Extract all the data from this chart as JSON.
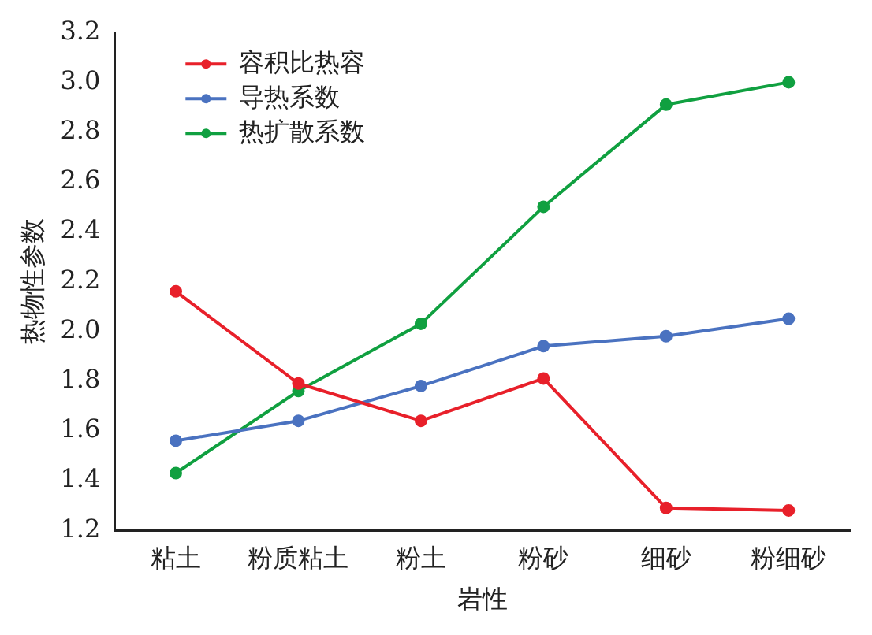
{
  "chart_data": {
    "type": "line",
    "xlabel": "岩性",
    "ylabel": "热物性参数",
    "categories": [
      "粘土",
      "粉质粘土",
      "粉土",
      "粉砂",
      "细砂",
      "粉细砂"
    ],
    "series": [
      {
        "name": "容积比热容",
        "color": "#e8202a",
        "values": [
          2.16,
          1.79,
          1.64,
          1.81,
          1.29,
          1.28
        ]
      },
      {
        "name": "导热系数",
        "color": "#4a72c0",
        "values": [
          1.56,
          1.64,
          1.78,
          1.94,
          1.98,
          2.05
        ]
      },
      {
        "name": "热扩散系数",
        "color": "#10a040",
        "values": [
          1.43,
          1.76,
          2.03,
          2.5,
          2.91,
          3.0
        ]
      }
    ],
    "ylim": [
      1.2,
      3.2
    ],
    "yticks": [
      {
        "value": 1.2,
        "label": "1.2"
      },
      {
        "value": 1.4,
        "label": "1.4"
      },
      {
        "value": 1.6,
        "label": "1.6"
      },
      {
        "value": 1.8,
        "label": "1.8"
      },
      {
        "value": 2.0,
        "label": "2.0"
      },
      {
        "value": 2.2,
        "label": "2.2"
      },
      {
        "value": 2.4,
        "label": "2.4"
      },
      {
        "value": 2.6,
        "label": "2.6"
      },
      {
        "value": 2.8,
        "label": "2.8"
      },
      {
        "value": 3.0,
        "label": "3.0"
      },
      {
        "value": 3.2,
        "label": "3.2"
      }
    ],
    "grid": false,
    "legend": "top left",
    "marker": "circle",
    "line_style": "solid"
  }
}
